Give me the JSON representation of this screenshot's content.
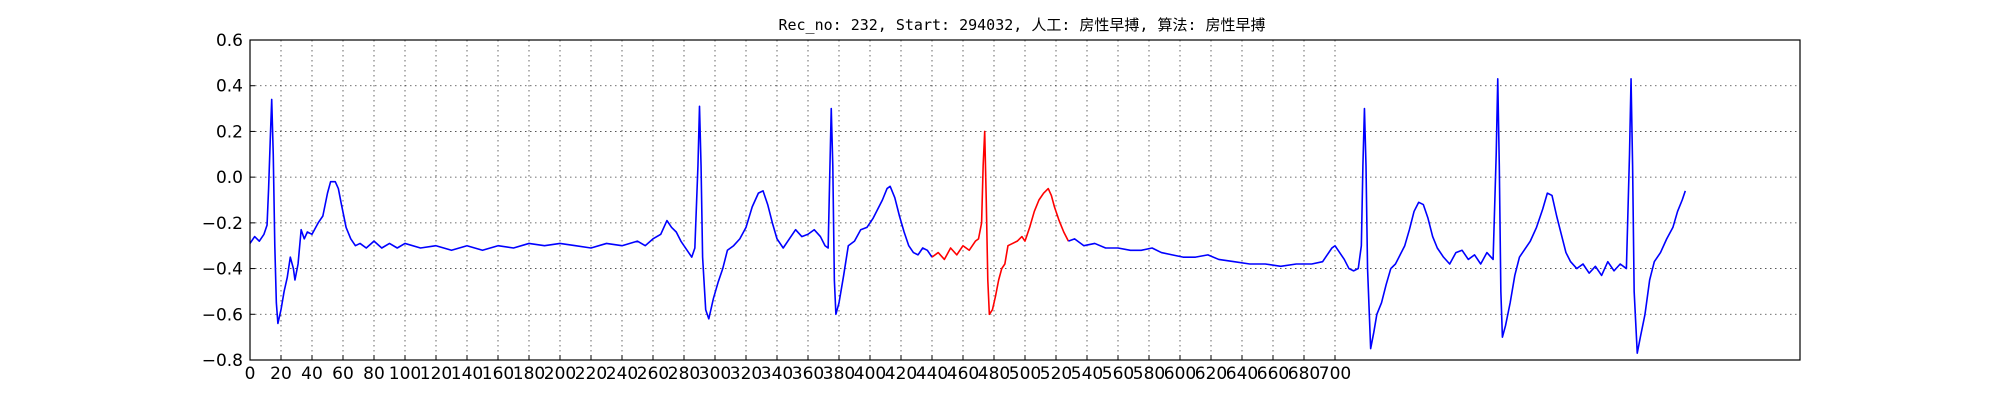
{
  "chart_data": {
    "type": "line",
    "title": "Rec_no: 232, Start: 294032, 人工: 房性早搏, 算法: 房性早搏",
    "xlabel": "",
    "ylabel": "",
    "xlim": [
      0,
      1000
    ],
    "ylim": [
      -0.8,
      0.6
    ],
    "yticks": [
      -0.8,
      -0.6,
      -0.4,
      -0.2,
      0.0,
      0.2,
      0.4,
      0.6
    ],
    "ytick_labels": [
      "−0.8",
      "−0.6",
      "−0.4",
      "−0.2",
      "0.0",
      "0.2",
      "0.4",
      "0.6"
    ],
    "xtick_step": 20,
    "xtick_max": 700,
    "grid": true,
    "series": [
      {
        "color": "#0000ff",
        "points": [
          [
            0,
            -0.29
          ],
          [
            3,
            -0.26
          ],
          [
            6,
            -0.28
          ],
          [
            9,
            -0.25
          ],
          [
            11,
            -0.21
          ],
          [
            12,
            -0.05
          ],
          [
            13,
            0.15
          ],
          [
            14,
            0.34
          ],
          [
            15,
            0.1
          ],
          [
            16,
            -0.3
          ],
          [
            17,
            -0.55
          ],
          [
            18,
            -0.64
          ],
          [
            20,
            -0.58
          ],
          [
            22,
            -0.5
          ],
          [
            24,
            -0.44
          ],
          [
            26,
            -0.35
          ],
          [
            28,
            -0.4
          ],
          [
            29,
            -0.45
          ],
          [
            31,
            -0.38
          ],
          [
            33,
            -0.23
          ],
          [
            35,
            -0.27
          ],
          [
            37,
            -0.24
          ],
          [
            40,
            -0.25
          ],
          [
            44,
            -0.2
          ],
          [
            47,
            -0.17
          ],
          [
            50,
            -0.07
          ],
          [
            52,
            -0.02
          ],
          [
            55,
            -0.02
          ],
          [
            57,
            -0.05
          ],
          [
            59,
            -0.12
          ],
          [
            62,
            -0.22
          ],
          [
            65,
            -0.27
          ],
          [
            68,
            -0.3
          ],
          [
            71,
            -0.29
          ],
          [
            75,
            -0.31
          ],
          [
            80,
            -0.28
          ],
          [
            85,
            -0.31
          ],
          [
            90,
            -0.29
          ],
          [
            95,
            -0.31
          ],
          [
            100,
            -0.29
          ],
          [
            110,
            -0.31
          ],
          [
            120,
            -0.3
          ],
          [
            130,
            -0.32
          ],
          [
            140,
            -0.3
          ],
          [
            150,
            -0.32
          ],
          [
            160,
            -0.3
          ],
          [
            170,
            -0.31
          ],
          [
            180,
            -0.29
          ],
          [
            190,
            -0.3
          ],
          [
            200,
            -0.29
          ],
          [
            210,
            -0.3
          ],
          [
            220,
            -0.31
          ],
          [
            230,
            -0.29
          ],
          [
            240,
            -0.3
          ],
          [
            250,
            -0.28
          ],
          [
            255,
            -0.3
          ],
          [
            260,
            -0.27
          ],
          [
            265,
            -0.25
          ],
          [
            269,
            -0.19
          ],
          [
            272,
            -0.22
          ],
          [
            275,
            -0.24
          ],
          [
            278,
            -0.28
          ],
          [
            282,
            -0.32
          ],
          [
            285,
            -0.35
          ],
          [
            287,
            -0.31
          ],
          [
            289,
            0.05
          ],
          [
            290,
            0.31
          ],
          [
            291,
            0.05
          ],
          [
            292,
            -0.35
          ],
          [
            294,
            -0.58
          ],
          [
            296,
            -0.62
          ],
          [
            299,
            -0.53
          ],
          [
            302,
            -0.46
          ],
          [
            305,
            -0.4
          ],
          [
            308,
            -0.32
          ],
          [
            312,
            -0.3
          ],
          [
            316,
            -0.27
          ],
          [
            320,
            -0.22
          ],
          [
            324,
            -0.13
          ],
          [
            328,
            -0.07
          ],
          [
            331,
            -0.06
          ],
          [
            334,
            -0.12
          ],
          [
            337,
            -0.2
          ],
          [
            340,
            -0.27
          ],
          [
            344,
            -0.31
          ],
          [
            348,
            -0.27
          ],
          [
            352,
            -0.23
          ],
          [
            356,
            -0.26
          ],
          [
            360,
            -0.25
          ],
          [
            364,
            -0.23
          ],
          [
            368,
            -0.26
          ],
          [
            371,
            -0.3
          ],
          [
            373,
            -0.31
          ],
          [
            374,
            0.0
          ],
          [
            375,
            0.3
          ],
          [
            376,
            0.05
          ],
          [
            377,
            -0.45
          ],
          [
            378,
            -0.6
          ],
          [
            380,
            -0.55
          ],
          [
            383,
            -0.43
          ],
          [
            386,
            -0.3
          ],
          [
            390,
            -0.28
          ],
          [
            394,
            -0.23
          ],
          [
            398,
            -0.22
          ],
          [
            402,
            -0.18
          ],
          [
            405,
            -0.14
          ],
          [
            408,
            -0.1
          ],
          [
            411,
            -0.05
          ],
          [
            413,
            -0.04
          ],
          [
            416,
            -0.09
          ],
          [
            419,
            -0.17
          ],
          [
            422,
            -0.24
          ],
          [
            425,
            -0.3
          ],
          [
            428,
            -0.33
          ],
          [
            431,
            -0.34
          ],
          [
            434,
            -0.31
          ],
          [
            437,
            -0.32
          ],
          [
            440,
            -0.35
          ]
        ]
      },
      {
        "color": "#ff0000",
        "points": [
          [
            440,
            -0.35
          ],
          [
            444,
            -0.33
          ],
          [
            448,
            -0.36
          ],
          [
            452,
            -0.31
          ],
          [
            456,
            -0.34
          ],
          [
            460,
            -0.3
          ],
          [
            464,
            -0.32
          ],
          [
            468,
            -0.28
          ],
          [
            470,
            -0.27
          ],
          [
            472,
            -0.2
          ],
          [
            473,
            0.05
          ],
          [
            474,
            0.2
          ],
          [
            475,
            -0.1
          ],
          [
            476,
            -0.45
          ],
          [
            477,
            -0.6
          ],
          [
            479,
            -0.58
          ],
          [
            481,
            -0.52
          ],
          [
            483,
            -0.45
          ],
          [
            485,
            -0.4
          ],
          [
            487,
            -0.38
          ],
          [
            489,
            -0.3
          ],
          [
            492,
            -0.29
          ],
          [
            495,
            -0.28
          ],
          [
            498,
            -0.26
          ],
          [
            500,
            -0.28
          ],
          [
            503,
            -0.22
          ],
          [
            506,
            -0.15
          ],
          [
            509,
            -0.1
          ],
          [
            512,
            -0.07
          ],
          [
            515,
            -0.05
          ],
          [
            517,
            -0.08
          ],
          [
            519,
            -0.13
          ],
          [
            522,
            -0.19
          ],
          [
            525,
            -0.24
          ],
          [
            528,
            -0.28
          ]
        ]
      },
      {
        "color": "#0000ff",
        "points": [
          [
            528,
            -0.28
          ],
          [
            532,
            -0.27
          ],
          [
            538,
            -0.3
          ],
          [
            545,
            -0.29
          ],
          [
            552,
            -0.31
          ],
          [
            560,
            -0.31
          ],
          [
            568,
            -0.32
          ],
          [
            575,
            -0.32
          ],
          [
            582,
            -0.31
          ],
          [
            588,
            -0.33
          ],
          [
            595,
            -0.34
          ],
          [
            602,
            -0.35
          ],
          [
            610,
            -0.35
          ],
          [
            618,
            -0.34
          ],
          [
            625,
            -0.36
          ],
          [
            635,
            -0.37
          ],
          [
            645,
            -0.38
          ],
          [
            655,
            -0.38
          ],
          [
            665,
            -0.39
          ],
          [
            675,
            -0.38
          ],
          [
            685,
            -0.38
          ],
          [
            692,
            -0.37
          ],
          [
            695,
            -0.34
          ],
          [
            698,
            -0.31
          ],
          [
            700,
            -0.3
          ],
          [
            703,
            -0.33
          ],
          [
            706,
            -0.36
          ],
          [
            709,
            -0.4
          ],
          [
            712,
            -0.41
          ],
          [
            715,
            -0.4
          ],
          [
            717,
            -0.3
          ],
          [
            718,
            0.05
          ],
          [
            719,
            0.3
          ],
          [
            720,
            0.05
          ],
          [
            721,
            -0.4
          ],
          [
            723,
            -0.75
          ],
          [
            725,
            -0.68
          ],
          [
            727,
            -0.6
          ],
          [
            730,
            -0.55
          ],
          [
            733,
            -0.47
          ],
          [
            736,
            -0.4
          ],
          [
            739,
            -0.38
          ],
          [
            742,
            -0.34
          ],
          [
            745,
            -0.3
          ],
          [
            748,
            -0.23
          ],
          [
            751,
            -0.15
          ],
          [
            754,
            -0.11
          ],
          [
            757,
            -0.12
          ],
          [
            760,
            -0.18
          ],
          [
            763,
            -0.26
          ],
          [
            766,
            -0.31
          ],
          [
            770,
            -0.35
          ],
          [
            774,
            -0.38
          ],
          [
            778,
            -0.33
          ],
          [
            782,
            -0.32
          ],
          [
            786,
            -0.36
          ],
          [
            790,
            -0.34
          ],
          [
            794,
            -0.38
          ],
          [
            798,
            -0.33
          ],
          [
            802,
            -0.36
          ],
          [
            804,
            0.1
          ],
          [
            805,
            0.43
          ],
          [
            806,
            0.05
          ],
          [
            807,
            -0.5
          ],
          [
            808,
            -0.7
          ],
          [
            810,
            -0.65
          ],
          [
            813,
            -0.55
          ],
          [
            816,
            -0.43
          ],
          [
            819,
            -0.35
          ],
          [
            822,
            -0.32
          ],
          [
            826,
            -0.28
          ],
          [
            830,
            -0.22
          ],
          [
            834,
            -0.14
          ],
          [
            837,
            -0.07
          ],
          [
            840,
            -0.08
          ],
          [
            843,
            -0.17
          ],
          [
            846,
            -0.25
          ],
          [
            849,
            -0.33
          ],
          [
            852,
            -0.37
          ],
          [
            856,
            -0.4
          ],
          [
            860,
            -0.38
          ],
          [
            864,
            -0.42
          ],
          [
            868,
            -0.39
          ],
          [
            872,
            -0.43
          ],
          [
            876,
            -0.37
          ],
          [
            880,
            -0.41
          ],
          [
            884,
            -0.38
          ],
          [
            888,
            -0.4
          ],
          [
            890,
            0.1
          ],
          [
            891,
            0.43
          ],
          [
            892,
            0.05
          ],
          [
            893,
            -0.5
          ],
          [
            895,
            -0.77
          ],
          [
            897,
            -0.7
          ],
          [
            900,
            -0.6
          ],
          [
            903,
            -0.45
          ],
          [
            906,
            -0.37
          ],
          [
            910,
            -0.33
          ],
          [
            914,
            -0.27
          ],
          [
            918,
            -0.22
          ],
          [
            921,
            -0.15
          ],
          [
            924,
            -0.1
          ],
          [
            926,
            -0.06
          ]
        ]
      }
    ]
  }
}
